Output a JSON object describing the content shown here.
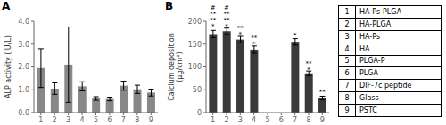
{
  "chart_data": [
    {
      "type": "bar",
      "title": "A",
      "categories": [
        "1",
        "2",
        "3",
        "4",
        "5",
        "6",
        "7",
        "8",
        "9"
      ],
      "values": [
        1.95,
        1.05,
        2.1,
        1.15,
        0.62,
        0.6,
        1.18,
        1.02,
        0.88
      ],
      "errors": [
        0.85,
        0.25,
        1.65,
        0.2,
        0.08,
        0.08,
        0.2,
        0.18,
        0.15
      ],
      "color": "#888888",
      "ylim": [
        0,
        4.0
      ],
      "yticks": [
        {
          "value": 0.0,
          "label": "0.0"
        },
        {
          "value": 1.0,
          "label": "1.0"
        },
        {
          "value": 2.0,
          "label": "2.0"
        },
        {
          "value": 3.0,
          "label": "3.0"
        },
        {
          "value": 4.0,
          "label": "4.0"
        }
      ],
      "ylabel": "ALP activity (IU/L)"
    },
    {
      "type": "bar",
      "title": "B",
      "categories": [
        "1",
        "2",
        "3",
        "4",
        "5",
        "6",
        "7",
        "8",
        "9"
      ],
      "values": [
        172,
        178,
        160,
        138,
        0,
        0,
        155,
        86,
        32
      ],
      "errors": [
        8,
        7,
        7,
        8,
        0,
        0,
        7,
        5,
        4
      ],
      "color": "#3a3a3a",
      "ylim": [
        0,
        200
      ],
      "yticks": [
        0,
        50,
        100,
        150,
        200
      ],
      "ylabel": "Calcium deposition\n(μg/cm²)",
      "annotations": [
        {
          "text": "#",
          "x": "1",
          "y": 200
        },
        {
          "text": "**",
          "x": "1",
          "y": 195
        },
        {
          "text": "**",
          "x": "1",
          "y": 190
        },
        {
          "text": "*",
          "x": "1",
          "y": 185
        },
        {
          "text": "#",
          "x": "2",
          "y": 200
        },
        {
          "text": "**",
          "x": "2",
          "y": 195
        },
        {
          "text": "**",
          "x": "2",
          "y": 190
        },
        {
          "text": "*",
          "x": "2",
          "y": 185
        },
        {
          "text": "**",
          "x": "3",
          "y": 172
        },
        {
          "text": "*",
          "x": "3",
          "y": 167
        },
        {
          "text": "**",
          "x": "4",
          "y": 150
        },
        {
          "text": "*",
          "x": "4",
          "y": 145
        },
        {
          "text": "*",
          "x": "7",
          "y": 165
        },
        {
          "text": "**",
          "x": "8",
          "y": 94
        },
        {
          "text": "*",
          "x": "8",
          "y": 89
        },
        {
          "text": "**",
          "x": "9",
          "y": 40
        }
      ]
    },
    {
      "type": "table",
      "categories": [
        "1",
        "2",
        "3",
        "4",
        "5",
        "6",
        "7",
        "8",
        "9"
      ],
      "annotations": [
        "HA-Ps-PLGA",
        "HA-PLGA",
        "HA-Ps",
        "HA",
        "PLGA-P",
        "PLGA",
        "DIF-7c peptide",
        "Glass",
        "PSTC"
      ]
    }
  ]
}
